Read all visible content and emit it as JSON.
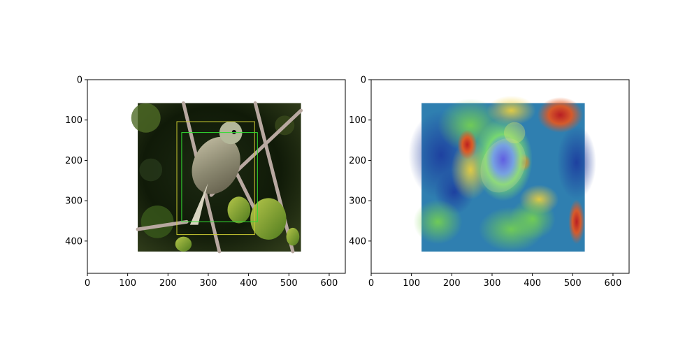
{
  "chart_data": [
    {
      "type": "image",
      "title": "",
      "xlabel": "",
      "ylabel": "",
      "xlim": [
        0,
        640
      ],
      "ylim": [
        480,
        0
      ],
      "xticks": [
        0,
        100,
        200,
        300,
        400,
        500,
        600
      ],
      "yticks": [
        0,
        100,
        200,
        300,
        400
      ],
      "image_extent": {
        "x": [
          125,
          530
        ],
        "y": [
          58,
          426
        ]
      },
      "content": "bird photo",
      "boxes": [
        {
          "color": "#c8c832",
          "x": [
            222,
            415
          ],
          "y": [
            104,
            384
          ]
        },
        {
          "color": "#32dc32",
          "x": [
            234,
            422
          ],
          "y": [
            131,
            352
          ]
        }
      ]
    },
    {
      "type": "image",
      "title": "",
      "xlabel": "",
      "ylabel": "",
      "xlim": [
        0,
        640
      ],
      "ylim": [
        480,
        0
      ],
      "xticks": [
        0,
        100,
        200,
        300,
        400,
        500,
        600
      ],
      "yticks": [
        0,
        100,
        200,
        300,
        400
      ],
      "image_extent": {
        "x": [
          125,
          530
        ],
        "y": [
          58,
          426
        ]
      },
      "content": "attention heatmap overlay",
      "colormap": "jet"
    }
  ]
}
